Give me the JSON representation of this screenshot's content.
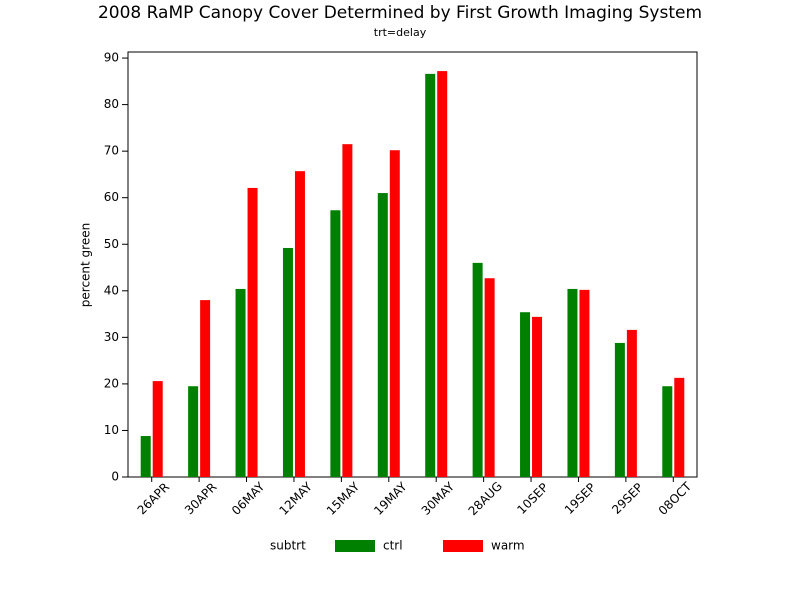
{
  "chart_data": {
    "type": "bar",
    "title": "2008 RaMP Canopy Cover Determined by First Growth Imaging System",
    "subtitle": "trt=delay",
    "y_label": "percent green",
    "legend_title": "subtrt",
    "categories": [
      "26APR",
      "30APR",
      "06MAY",
      "12MAY",
      "15MAY",
      "19MAY",
      "30MAY",
      "28AUG",
      "10SEP",
      "19SEP",
      "29SEP",
      "08OCT"
    ],
    "series": [
      {
        "name": "ctrl",
        "color": "#008000",
        "values": [
          8.8,
          19.5,
          40.4,
          49.2,
          57.3,
          61.0,
          86.6,
          46.0,
          35.4,
          40.4,
          28.8,
          19.5
        ]
      },
      {
        "name": "warm",
        "color": "#ff0000",
        "values": [
          20.6,
          38.0,
          62.1,
          65.7,
          71.5,
          70.2,
          87.2,
          42.7,
          34.4,
          40.2,
          31.6,
          21.3
        ]
      }
    ],
    "ylim": [
      0,
      91.3
    ],
    "yticks": [
      0,
      10,
      20,
      30,
      40,
      50,
      60,
      70,
      80,
      90
    ],
    "legend": "bottom"
  }
}
